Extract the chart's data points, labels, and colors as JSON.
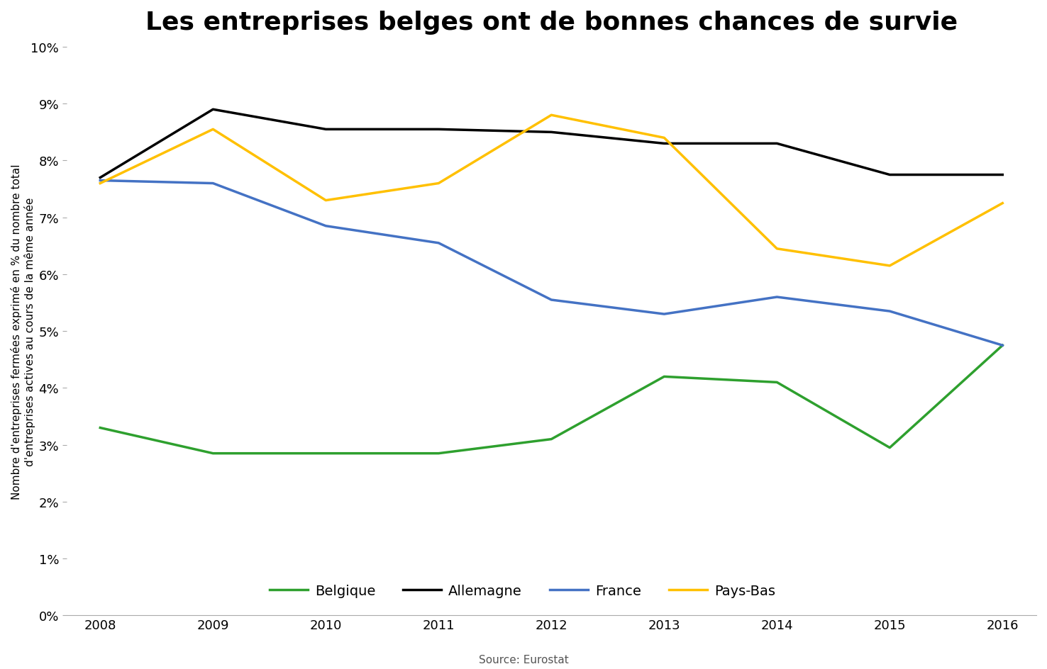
{
  "title": "Les entreprises belges ont de bonnes chances de survie",
  "ylabel": "Nombre d'entreprises fermées exprimé en % du nombre total\nd'entreprises actives au cours de la même année",
  "source": "Source: Eurostat",
  "years": [
    2008,
    2009,
    2010,
    2011,
    2012,
    2013,
    2014,
    2015,
    2016
  ],
  "belgique": [
    3.3,
    2.85,
    2.85,
    2.85,
    3.1,
    4.2,
    4.1,
    2.95,
    4.75
  ],
  "allemagne": [
    7.7,
    8.9,
    8.55,
    8.55,
    8.5,
    8.3,
    8.3,
    7.75,
    7.75
  ],
  "france": [
    7.65,
    7.6,
    6.85,
    6.55,
    5.55,
    5.3,
    5.6,
    5.35,
    4.75
  ],
  "pays_bas": [
    7.6,
    8.55,
    7.3,
    7.6,
    8.8,
    8.4,
    6.45,
    6.15,
    7.25
  ],
  "colors": {
    "belgique": "#2EA02E",
    "allemagne": "#000000",
    "france": "#4472C4",
    "pays_bas": "#FFC000"
  },
  "legend_labels": [
    "Belgique",
    "Allemagne",
    "France",
    "Pays-Bas"
  ],
  "ylim": [
    0,
    10
  ],
  "yticks": [
    0,
    1,
    2,
    3,
    4,
    5,
    6,
    7,
    8,
    9,
    10
  ],
  "ytick_labels": [
    "0%",
    "1%",
    "2%",
    "3%",
    "4%",
    "5%",
    "6%",
    "7%",
    "8%",
    "9%",
    "10%"
  ],
  "line_width": 2.5,
  "title_fontsize": 26,
  "label_fontsize": 11,
  "legend_fontsize": 14,
  "tick_fontsize": 13,
  "background_color": "#FFFFFF"
}
